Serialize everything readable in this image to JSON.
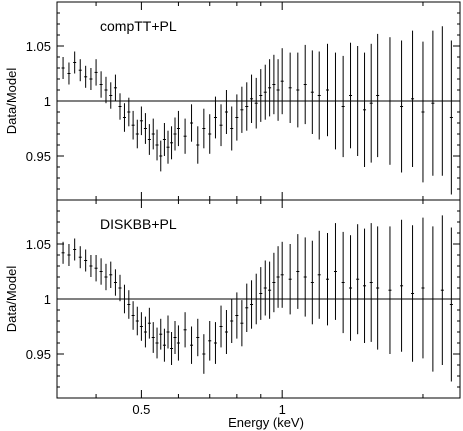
{
  "chart_data": [
    {
      "type": "scatter",
      "panel_label": "compTT+PL",
      "ylabel": "Data/Model",
      "xlabel": "",
      "xscale": "log",
      "xlim": [
        0.33,
        2.4
      ],
      "ylim": [
        0.91,
        1.09
      ],
      "xticks": [
        0.5,
        1
      ],
      "yticks": [
        0.95,
        1,
        1.05
      ],
      "reference_line": 1,
      "xtick_labels_shown": false,
      "series": [
        {
          "x": [
            0.34,
            0.35,
            0.36,
            0.37,
            0.38,
            0.39,
            0.4,
            0.41,
            0.42,
            0.43,
            0.44,
            0.45,
            0.46,
            0.47,
            0.48,
            0.49,
            0.5,
            0.51,
            0.52,
            0.53,
            0.54,
            0.55,
            0.56,
            0.57,
            0.58,
            0.59,
            0.6,
            0.62,
            0.64,
            0.66,
            0.68,
            0.7,
            0.72,
            0.74,
            0.76,
            0.78,
            0.8,
            0.82,
            0.84,
            0.86,
            0.88,
            0.9,
            0.92,
            0.94,
            0.96,
            0.98,
            1.0,
            1.04,
            1.08,
            1.12,
            1.16,
            1.2,
            1.25,
            1.3,
            1.35,
            1.4,
            1.45,
            1.5,
            1.55,
            1.6,
            1.7,
            1.8,
            1.9,
            2.0,
            2.1,
            2.2,
            2.3
          ],
          "y": [
            1.03,
            1.025,
            1.035,
            1.028,
            1.022,
            1.02,
            1.026,
            1.015,
            1.01,
            1.005,
            1.012,
            0.995,
            0.985,
            0.99,
            0.978,
            0.97,
            0.982,
            0.975,
            0.965,
            0.97,
            0.96,
            0.95,
            0.965,
            0.958,
            0.962,
            0.97,
            0.975,
            0.968,
            0.98,
            0.96,
            0.975,
            0.97,
            0.985,
            0.978,
            0.99,
            0.975,
            0.985,
            0.992,
            0.995,
            1.002,
            0.998,
            1.005,
            1.008,
            1.012,
            1.015,
            1.01,
            1.018,
            1.012,
            1.01,
            1.015,
            1.008,
            1.005,
            1.01,
            1.0,
            0.995,
            1.005,
            1.0,
            0.992,
            0.998,
            1.005,
            1.0,
            0.995,
            1.002,
            0.99,
            0.998,
            1.0,
            0.985
          ],
          "err": [
            0.01,
            0.01,
            0.01,
            0.01,
            0.01,
            0.01,
            0.012,
            0.012,
            0.012,
            0.012,
            0.012,
            0.012,
            0.013,
            0.013,
            0.013,
            0.013,
            0.013,
            0.014,
            0.014,
            0.014,
            0.014,
            0.014,
            0.015,
            0.015,
            0.015,
            0.015,
            0.016,
            0.016,
            0.017,
            0.017,
            0.018,
            0.018,
            0.019,
            0.019,
            0.02,
            0.02,
            0.021,
            0.021,
            0.022,
            0.022,
            0.023,
            0.024,
            0.025,
            0.026,
            0.027,
            0.028,
            0.03,
            0.032,
            0.034,
            0.036,
            0.038,
            0.04,
            0.042,
            0.044,
            0.046,
            0.048,
            0.05,
            0.052,
            0.054,
            0.056,
            0.058,
            0.06,
            0.062,
            0.064,
            0.066,
            0.068,
            0.07
          ]
        }
      ]
    },
    {
      "type": "scatter",
      "panel_label": "DISKBB+PL",
      "ylabel": "Data/Model",
      "xlabel": "Energy (keV)",
      "xscale": "log",
      "xlim": [
        0.33,
        2.4
      ],
      "ylim": [
        0.91,
        1.09
      ],
      "xticks": [
        0.5,
        1
      ],
      "xtick_labels": [
        "0.5",
        "1"
      ],
      "yticks": [
        0.95,
        1,
        1.05
      ],
      "reference_line": 1,
      "xtick_labels_shown": true,
      "series": [
        {
          "x": [
            0.34,
            0.35,
            0.36,
            0.37,
            0.38,
            0.39,
            0.4,
            0.41,
            0.42,
            0.43,
            0.44,
            0.45,
            0.46,
            0.47,
            0.48,
            0.49,
            0.5,
            0.51,
            0.52,
            0.53,
            0.54,
            0.55,
            0.56,
            0.57,
            0.58,
            0.59,
            0.6,
            0.62,
            0.64,
            0.66,
            0.68,
            0.7,
            0.72,
            0.74,
            0.76,
            0.78,
            0.8,
            0.82,
            0.84,
            0.86,
            0.88,
            0.9,
            0.92,
            0.94,
            0.96,
            0.98,
            1.0,
            1.04,
            1.08,
            1.12,
            1.16,
            1.2,
            1.25,
            1.3,
            1.35,
            1.4,
            1.45,
            1.5,
            1.55,
            1.6,
            1.7,
            1.8,
            1.9,
            2.0,
            2.1,
            2.2,
            2.3
          ],
          "y": [
            1.042,
            1.04,
            1.045,
            1.038,
            1.035,
            1.03,
            1.028,
            1.025,
            1.02,
            1.022,
            1.015,
            1.01,
            1.0,
            0.995,
            0.985,
            0.98,
            0.975,
            0.97,
            0.978,
            0.965,
            0.96,
            0.968,
            0.958,
            0.97,
            0.955,
            0.965,
            0.96,
            0.972,
            0.958,
            0.965,
            0.95,
            0.962,
            0.96,
            0.975,
            0.97,
            0.98,
            0.985,
            0.978,
            0.992,
            0.995,
            1.0,
            1.005,
            1.01,
            1.008,
            1.015,
            1.02,
            1.022,
            1.018,
            1.025,
            1.02,
            1.015,
            1.022,
            1.018,
            1.025,
            1.015,
            1.01,
            1.018,
            1.012,
            1.015,
            1.01,
            1.008,
            1.012,
            1.005,
            1.01,
            1.0,
            1.008,
            0.995
          ],
          "err": [
            0.01,
            0.01,
            0.01,
            0.01,
            0.01,
            0.01,
            0.012,
            0.012,
            0.012,
            0.012,
            0.012,
            0.012,
            0.013,
            0.013,
            0.013,
            0.013,
            0.013,
            0.014,
            0.014,
            0.014,
            0.014,
            0.014,
            0.015,
            0.015,
            0.015,
            0.015,
            0.016,
            0.016,
            0.017,
            0.017,
            0.018,
            0.018,
            0.019,
            0.019,
            0.02,
            0.02,
            0.021,
            0.021,
            0.022,
            0.022,
            0.023,
            0.024,
            0.025,
            0.026,
            0.027,
            0.028,
            0.03,
            0.032,
            0.034,
            0.036,
            0.038,
            0.04,
            0.042,
            0.044,
            0.046,
            0.048,
            0.05,
            0.052,
            0.054,
            0.056,
            0.058,
            0.06,
            0.062,
            0.064,
            0.066,
            0.068,
            0.07
          ]
        }
      ]
    }
  ]
}
